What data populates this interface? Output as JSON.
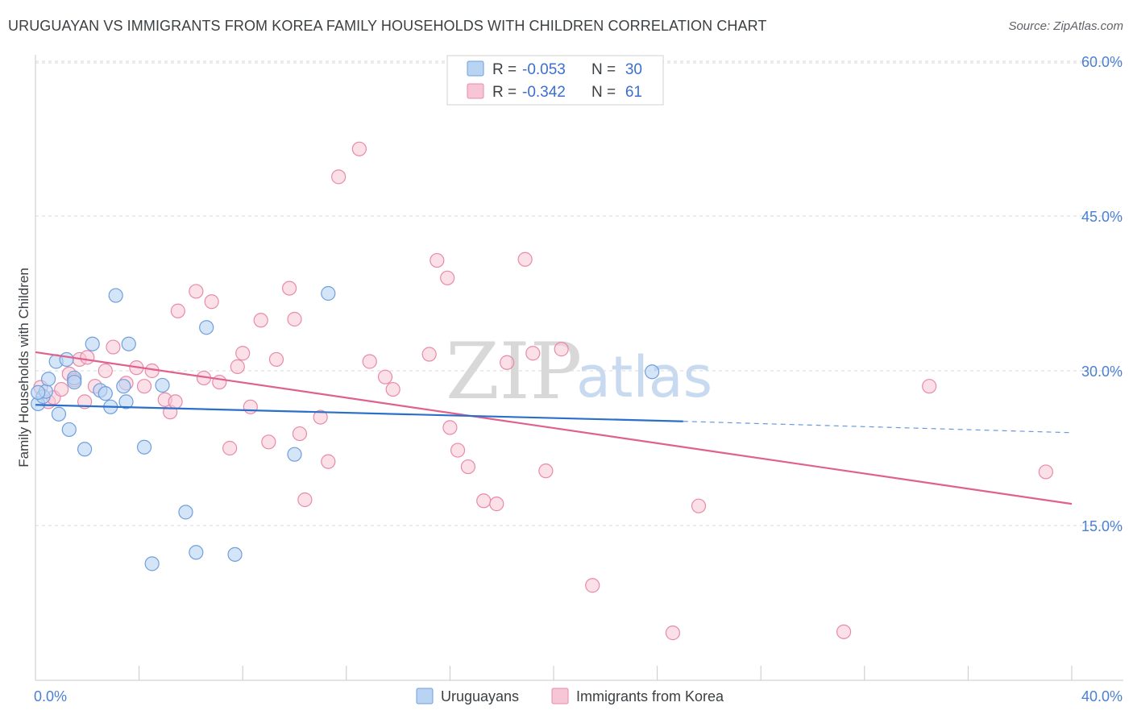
{
  "title": "URUGUAYAN VS IMMIGRANTS FROM KOREA FAMILY HOUSEHOLDS WITH CHILDREN CORRELATION CHART",
  "source": "Source: ZipAtlas.com",
  "watermark": {
    "zip": "ZIP",
    "atlas": "atlas"
  },
  "colors": {
    "blue_fill": "#b9d3f3",
    "blue_stroke": "#6f9fdc",
    "blue_line": "#2a6fc9",
    "pink_fill": "#f7c6d6",
    "pink_stroke": "#e88aaa",
    "pink_line": "#e0608e",
    "grid": "#d9d9d9",
    "tick_text": "#4a7fd4"
  },
  "legend": {
    "row1": {
      "r_label": "R =",
      "r_value": "-0.053",
      "n_label": "N =",
      "n_value": "30"
    },
    "row2": {
      "r_label": "R =",
      "r_value": "-0.342",
      "n_label": "N =",
      "n_value": "61"
    }
  },
  "chart_data": {
    "type": "scatter",
    "title": "URUGUAYAN VS IMMIGRANTS FROM KOREA FAMILY HOUSEHOLDS WITH CHILDREN CORRELATION CHART",
    "xlabel": "",
    "ylabel": "Family Households with Children",
    "xlim": [
      0,
      40
    ],
    "ylim": [
      0,
      62
    ],
    "x_tick_labels": [
      "0.0%",
      "40.0%"
    ],
    "y_ticks": [
      15,
      30,
      45,
      60
    ],
    "y_tick_labels": [
      "15.0%",
      "30.0%",
      "45.0%",
      "60.0%"
    ],
    "series": [
      {
        "name": "Uruguayans",
        "color": "#6f9fdc",
        "R": -0.053,
        "N": 30,
        "trend": {
          "x0": 0,
          "y0": 26.7,
          "x1": 25,
          "y1": 25.1,
          "dash_x1": 40,
          "dash_y1": 24.0
        },
        "points": [
          [
            0.1,
            26.8
          ],
          [
            0.3,
            27.5
          ],
          [
            0.4,
            28.0
          ],
          [
            0.5,
            29.2
          ],
          [
            0.8,
            30.9
          ],
          [
            0.9,
            25.8
          ],
          [
            1.2,
            31.1
          ],
          [
            1.3,
            24.3
          ],
          [
            1.5,
            29.3
          ],
          [
            1.5,
            28.9
          ],
          [
            1.9,
            22.4
          ],
          [
            2.2,
            32.6
          ],
          [
            2.5,
            28.1
          ],
          [
            2.7,
            27.8
          ],
          [
            2.9,
            26.5
          ],
          [
            3.1,
            37.3
          ],
          [
            3.4,
            28.5
          ],
          [
            3.5,
            27.0
          ],
          [
            3.6,
            32.6
          ],
          [
            4.2,
            22.6
          ],
          [
            4.5,
            11.3
          ],
          [
            4.9,
            28.6
          ],
          [
            5.8,
            16.3
          ],
          [
            6.2,
            12.4
          ],
          [
            6.6,
            34.2
          ],
          [
            7.7,
            12.2
          ],
          [
            10.0,
            21.9
          ],
          [
            11.3,
            37.5
          ],
          [
            23.8,
            29.9
          ],
          [
            0.1,
            27.9
          ]
        ]
      },
      {
        "name": "Immigrants from Korea",
        "color": "#e88aaa",
        "R": -0.342,
        "N": 61,
        "trend": {
          "x0": 0,
          "y0": 31.8,
          "x1": 40,
          "y1": 17.1
        },
        "points": [
          [
            0.2,
            28.4
          ],
          [
            0.5,
            27.0
          ],
          [
            0.7,
            27.4
          ],
          [
            1.0,
            28.2
          ],
          [
            1.3,
            29.7
          ],
          [
            1.5,
            29.1
          ],
          [
            1.7,
            31.1
          ],
          [
            1.9,
            27.0
          ],
          [
            2.0,
            31.3
          ],
          [
            2.3,
            28.5
          ],
          [
            2.7,
            30.0
          ],
          [
            3.0,
            32.3
          ],
          [
            3.5,
            28.8
          ],
          [
            3.9,
            30.3
          ],
          [
            4.2,
            28.5
          ],
          [
            4.5,
            30.0
          ],
          [
            5.0,
            27.2
          ],
          [
            5.2,
            26.0
          ],
          [
            5.4,
            27.0
          ],
          [
            5.5,
            35.8
          ],
          [
            6.2,
            37.7
          ],
          [
            6.5,
            29.3
          ],
          [
            6.8,
            36.7
          ],
          [
            7.1,
            28.9
          ],
          [
            7.5,
            22.5
          ],
          [
            7.8,
            30.4
          ],
          [
            8.0,
            31.7
          ],
          [
            8.3,
            26.5
          ],
          [
            8.7,
            34.9
          ],
          [
            9.0,
            23.1
          ],
          [
            9.3,
            31.1
          ],
          [
            9.8,
            38.0
          ],
          [
            10.0,
            35.0
          ],
          [
            10.2,
            23.9
          ],
          [
            10.4,
            17.5
          ],
          [
            11.0,
            25.5
          ],
          [
            11.3,
            21.2
          ],
          [
            11.7,
            48.8
          ],
          [
            12.5,
            51.5
          ],
          [
            12.9,
            30.9
          ],
          [
            13.5,
            29.4
          ],
          [
            13.8,
            28.2
          ],
          [
            15.2,
            31.6
          ],
          [
            15.5,
            40.7
          ],
          [
            15.9,
            39.0
          ],
          [
            16.0,
            24.5
          ],
          [
            16.3,
            22.3
          ],
          [
            16.7,
            20.7
          ],
          [
            17.3,
            17.4
          ],
          [
            17.8,
            17.1
          ],
          [
            18.2,
            30.8
          ],
          [
            18.9,
            40.8
          ],
          [
            19.2,
            31.7
          ],
          [
            19.7,
            20.3
          ],
          [
            20.3,
            32.1
          ],
          [
            21.5,
            9.2
          ],
          [
            24.6,
            4.6
          ],
          [
            25.6,
            16.9
          ],
          [
            31.2,
            4.7
          ],
          [
            34.5,
            28.5
          ],
          [
            39.0,
            20.2
          ]
        ]
      }
    ],
    "legend_entries": [
      "Uruguayans",
      "Immigrants from Korea"
    ]
  }
}
